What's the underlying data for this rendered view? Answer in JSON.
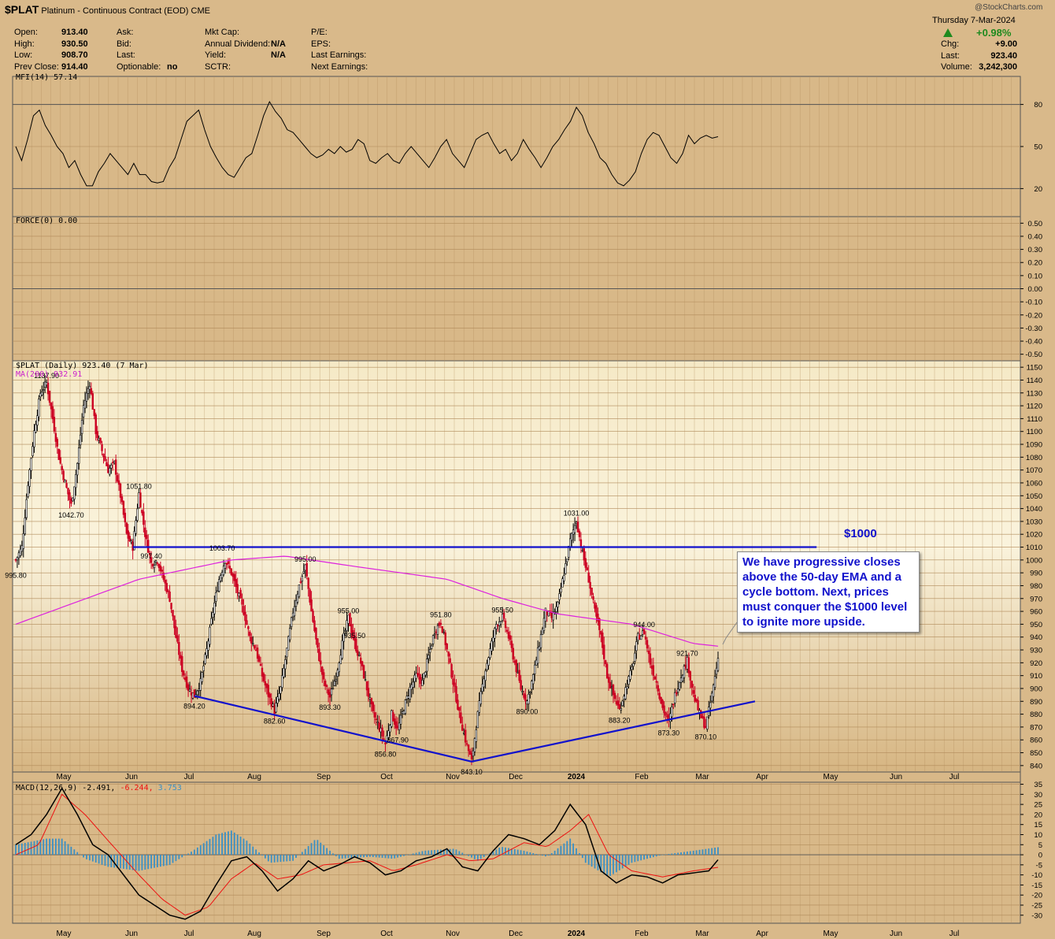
{
  "header": {
    "symbol": "$PLAT",
    "desc": "Platinum - Continuous Contract (EOD)",
    "exchange": "CME",
    "date": "Thursday  7-Mar-2024",
    "copyright": "@StockCharts.com",
    "change_pct": "+0.98%",
    "left_fields": [
      {
        "label": "Open:",
        "value": "913.40"
      },
      {
        "label": "High:",
        "value": "930.50"
      },
      {
        "label": "Low:",
        "value": "908.70"
      },
      {
        "label": "Prev Close:",
        "value": "914.40"
      }
    ],
    "mid_fields": [
      {
        "label": "Ask:",
        "value": ""
      },
      {
        "label": "Bid:",
        "value": ""
      },
      {
        "label": "Last:",
        "value": ""
      },
      {
        "label": "Optionable:",
        "value": "no"
      }
    ],
    "mid2_fields": [
      {
        "label": "Mkt Cap:",
        "value": ""
      },
      {
        "label": "Annual Dividend:",
        "value": "N/A"
      },
      {
        "label": "Yield:",
        "value": "N/A"
      },
      {
        "label": "SCTR:",
        "value": ""
      }
    ],
    "right_fields": [
      {
        "label": "P/E:"
      },
      {
        "label": "EPS:"
      },
      {
        "label": "Last Earnings:"
      },
      {
        "label": "Next Earnings:"
      }
    ],
    "quote_fields": [
      {
        "label": "Chg:",
        "value": "+9.00"
      },
      {
        "label": "Last:",
        "value": "923.40"
      },
      {
        "label": "Volume:",
        "value": "3,242,300"
      }
    ]
  },
  "panels": {
    "mfi_label": "MFI(14) 57.14",
    "force_label": "FORCE(0) 0.00",
    "price_label": "$PLAT (Daily) 923.40 (7 Mar)",
    "ma_label": "MA(200) 932.91",
    "macd_label": "MACD(12,26,9) -2.491,",
    "macd_val2": "-6.244,",
    "macd_val3": "3.753"
  },
  "annotation": {
    "level_label": "$1000",
    "callout": "We have progressive closes above the 50-day EMA and a cycle bottom. Next, prices must conquer the $1000 level to ignite more upside."
  },
  "colors": {
    "up": "#000000",
    "down": "#cc0022",
    "ma": "#dd22dd",
    "trend": "#1111cc",
    "macd_hist": "#3a8fc4",
    "signal": "#ee1111"
  },
  "chart_data": [
    {
      "type": "line",
      "title": "MFI(14) 57.14",
      "yticks": [
        20,
        50,
        80
      ],
      "series": [
        {
          "name": "MFI(14)",
          "values": [
            50,
            40,
            55,
            72,
            76,
            65,
            58,
            50,
            45,
            35,
            40,
            30,
            22,
            22,
            32,
            38,
            45,
            40,
            35,
            30,
            38,
            30,
            30,
            25,
            24,
            25,
            35,
            42,
            55,
            68,
            72,
            76,
            62,
            50,
            42,
            35,
            30,
            28,
            35,
            42,
            45,
            58,
            72,
            82,
            75,
            70,
            62,
            60,
            55,
            50,
            45,
            42,
            44,
            48,
            45,
            50,
            46,
            48,
            55,
            52,
            40,
            38,
            42,
            45,
            40,
            38,
            45,
            50,
            45,
            40,
            35,
            42,
            50,
            55,
            45,
            40,
            35,
            45,
            55,
            58,
            60,
            52,
            45,
            48,
            40,
            45,
            55,
            48,
            42,
            35,
            42,
            50,
            55,
            62,
            68,
            78,
            72,
            60,
            52,
            42,
            38,
            30,
            24,
            22,
            26,
            32,
            45,
            55,
            60,
            58,
            50,
            42,
            38,
            45,
            58,
            52,
            56,
            58,
            56,
            57
          ]
        }
      ],
      "ylim": [
        0,
        100
      ]
    },
    {
      "type": "line",
      "title": "FORCE(0) 0.00",
      "yticks": [
        0.5,
        0.4,
        0.3,
        0.2,
        0.1,
        0.0,
        -0.1,
        -0.2,
        -0.3,
        -0.4,
        -0.5
      ],
      "ylim": [
        -0.55,
        0.55
      ]
    },
    {
      "type": "candlestick",
      "title": "$PLAT (Daily) 923.40 (7 Mar)",
      "x_labels": [
        "May",
        "Jun",
        "Jul",
        "Aug",
        "Sep",
        "Oct",
        "Nov",
        "Dec",
        "2024",
        "Feb",
        "Mar",
        "Apr",
        "May",
        "Jun",
        "Jul"
      ],
      "yticks": [
        840,
        850,
        860,
        870,
        880,
        890,
        900,
        910,
        920,
        930,
        940,
        950,
        960,
        970,
        980,
        990,
        1000,
        1010,
        1020,
        1030,
        1040,
        1050,
        1060,
        1070,
        1080,
        1090,
        1100,
        1110,
        1120,
        1130,
        1140,
        1150
      ],
      "ylim": [
        835,
        1155
      ],
      "close_path": [
        [
          0,
          1000
        ],
        [
          4,
          1010
        ],
        [
          8,
          1060
        ],
        [
          12,
          1100
        ],
        [
          16,
          1130
        ],
        [
          20,
          1137.9
        ],
        [
          24,
          1110
        ],
        [
          28,
          1080
        ],
        [
          32,
          1060
        ],
        [
          36,
          1042.7
        ],
        [
          40,
          1075
        ],
        [
          44,
          1120
        ],
        [
          48,
          1137.9
        ],
        [
          52,
          1100
        ],
        [
          56,
          1085
        ],
        [
          60,
          1070
        ],
        [
          64,
          1075
        ],
        [
          68,
          1050
        ],
        [
          72,
          1020
        ],
        [
          76,
          1010
        ],
        [
          80,
          1051.8
        ],
        [
          84,
          1020
        ],
        [
          88,
          997.4
        ],
        [
          92,
          1000
        ],
        [
          96,
          985
        ],
        [
          100,
          970
        ],
        [
          104,
          940
        ],
        [
          108,
          915
        ],
        [
          112,
          900
        ],
        [
          116,
          894.2
        ],
        [
          120,
          905
        ],
        [
          124,
          930
        ],
        [
          128,
          960
        ],
        [
          132,
          985
        ],
        [
          136,
          1000
        ],
        [
          140,
          990
        ],
        [
          144,
          975
        ],
        [
          148,
          960
        ],
        [
          152,
          940
        ],
        [
          156,
          930
        ],
        [
          160,
          910
        ],
        [
          164,
          895
        ],
        [
          168,
          882.6
        ],
        [
          172,
          900
        ],
        [
          176,
          930
        ],
        [
          180,
          960
        ],
        [
          184,
          980
        ],
        [
          188,
          995
        ],
        [
          192,
          960
        ],
        [
          196,
          930
        ],
        [
          200,
          905
        ],
        [
          204,
          893.3
        ],
        [
          208,
          910
        ],
        [
          212,
          935
        ],
        [
          216,
          955
        ],
        [
          220,
          935.5
        ],
        [
          224,
          920
        ],
        [
          228,
          900
        ],
        [
          232,
          880
        ],
        [
          236,
          870
        ],
        [
          240,
          856.8
        ],
        [
          244,
          880
        ],
        [
          248,
          867.9
        ],
        [
          252,
          885
        ],
        [
          256,
          900
        ],
        [
          260,
          910
        ],
        [
          264,
          905
        ],
        [
          268,
          925
        ],
        [
          272,
          945
        ],
        [
          276,
          951.8
        ],
        [
          280,
          930
        ],
        [
          284,
          905
        ],
        [
          288,
          880
        ],
        [
          292,
          860
        ],
        [
          296,
          843.1
        ],
        [
          300,
          880
        ],
        [
          304,
          910
        ],
        [
          308,
          930
        ],
        [
          312,
          950
        ],
        [
          316,
          955.5
        ],
        [
          320,
          940
        ],
        [
          324,
          920
        ],
        [
          328,
          900
        ],
        [
          332,
          890
        ],
        [
          336,
          910
        ],
        [
          340,
          935
        ],
        [
          344,
          960
        ],
        [
          348,
          955
        ],
        [
          352,
          965
        ],
        [
          356,
          990
        ],
        [
          360,
          1015
        ],
        [
          364,
          1031
        ],
        [
          368,
          1005
        ],
        [
          372,
          985
        ],
        [
          376,
          960
        ],
        [
          380,
          940
        ],
        [
          384,
          910
        ],
        [
          388,
          895
        ],
        [
          392,
          883.2
        ],
        [
          396,
          900
        ],
        [
          400,
          915
        ],
        [
          404,
          940
        ],
        [
          408,
          944
        ],
        [
          412,
          920
        ],
        [
          416,
          905
        ],
        [
          420,
          885
        ],
        [
          424,
          873.3
        ],
        [
          428,
          895
        ],
        [
          432,
          910
        ],
        [
          436,
          921.7
        ],
        [
          440,
          895
        ],
        [
          444,
          880
        ],
        [
          448,
          870.1
        ],
        [
          452,
          895
        ],
        [
          456,
          923.4
        ]
      ],
      "ma200": [
        [
          0,
          950
        ],
        [
          80,
          985
        ],
        [
          140,
          1000
        ],
        [
          175,
          1003
        ],
        [
          220,
          995
        ],
        [
          280,
          985
        ],
        [
          316,
          970
        ],
        [
          352,
          958
        ],
        [
          400,
          950
        ],
        [
          440,
          935
        ],
        [
          456,
          932.91
        ]
      ],
      "annotations": [
        {
          "i": 0,
          "value": "995.80"
        },
        {
          "i": 20,
          "value": "1137.90"
        },
        {
          "i": 36,
          "value": "1042.70"
        },
        {
          "i": 80,
          "value": "1051.80"
        },
        {
          "i": 88,
          "value": "997.40"
        },
        {
          "i": 116,
          "value": "894.20"
        },
        {
          "i": 134,
          "value": "1003.70"
        },
        {
          "i": 168,
          "value": "882.60"
        },
        {
          "i": 188,
          "value": "995.00"
        },
        {
          "i": 204,
          "value": "893.30"
        },
        {
          "i": 216,
          "value": "955.00"
        },
        {
          "i": 220,
          "value": "935.50"
        },
        {
          "i": 240,
          "value": "856.80"
        },
        {
          "i": 248,
          "value": "867.90"
        },
        {
          "i": 276,
          "value": "951.80"
        },
        {
          "i": 296,
          "value": "843.10"
        },
        {
          "i": 316,
          "value": "955.50"
        },
        {
          "i": 332,
          "value": "890.00"
        },
        {
          "i": 364,
          "value": "1031.00"
        },
        {
          "i": 392,
          "value": "883.20"
        },
        {
          "i": 408,
          "value": "944.00"
        },
        {
          "i": 424,
          "value": "873.30"
        },
        {
          "i": 436,
          "value": "921.70"
        },
        {
          "i": 448,
          "value": "870.10"
        }
      ],
      "trendlines": [
        {
          "name": "resistance",
          "from": [
            76,
            1010
          ],
          "to": [
            520,
            1010
          ]
        },
        {
          "name": "support-left",
          "from": [
            116,
            894.2
          ],
          "to": [
            296,
            843.1
          ]
        },
        {
          "name": "support-right",
          "from": [
            296,
            843.1
          ],
          "to": [
            480,
            890
          ]
        }
      ]
    },
    {
      "type": "line",
      "title": "MACD(12,26,9) -2.491, -6.244, 3.753",
      "yticks": [
        35,
        30,
        25,
        20,
        15,
        10,
        5,
        0,
        -5,
        -10,
        -15,
        -20,
        -25,
        -30
      ],
      "ylim": [
        -34,
        36
      ],
      "macd": [
        [
          0,
          5
        ],
        [
          10,
          10
        ],
        [
          20,
          20
        ],
        [
          30,
          33
        ],
        [
          40,
          20
        ],
        [
          50,
          5
        ],
        [
          60,
          0
        ],
        [
          70,
          -10
        ],
        [
          80,
          -20
        ],
        [
          90,
          -25
        ],
        [
          100,
          -30
        ],
        [
          110,
          -32
        ],
        [
          120,
          -28
        ],
        [
          130,
          -15
        ],
        [
          140,
          -3
        ],
        [
          150,
          -1
        ],
        [
          160,
          -8
        ],
        [
          170,
          -18
        ],
        [
          180,
          -12
        ],
        [
          190,
          -3
        ],
        [
          200,
          -8
        ],
        [
          210,
          -5
        ],
        [
          220,
          -1
        ],
        [
          230,
          -4
        ],
        [
          240,
          -10
        ],
        [
          250,
          -8
        ],
        [
          260,
          -3
        ],
        [
          270,
          -1
        ],
        [
          280,
          3
        ],
        [
          290,
          -6
        ],
        [
          300,
          -8
        ],
        [
          310,
          2
        ],
        [
          320,
          10
        ],
        [
          330,
          8
        ],
        [
          340,
          5
        ],
        [
          350,
          12
        ],
        [
          360,
          25
        ],
        [
          370,
          15
        ],
        [
          380,
          -8
        ],
        [
          390,
          -14
        ],
        [
          400,
          -10
        ],
        [
          410,
          -11
        ],
        [
          420,
          -14
        ],
        [
          430,
          -10
        ],
        [
          440,
          -9
        ],
        [
          450,
          -8
        ],
        [
          456,
          -2.491
        ]
      ],
      "signal": [
        [
          0,
          0
        ],
        [
          15,
          5
        ],
        [
          30,
          30
        ],
        [
          45,
          20
        ],
        [
          60,
          7
        ],
        [
          80,
          -10
        ],
        [
          95,
          -22
        ],
        [
          110,
          -30
        ],
        [
          125,
          -26
        ],
        [
          140,
          -12
        ],
        [
          155,
          -4
        ],
        [
          170,
          -12
        ],
        [
          185,
          -10
        ],
        [
          200,
          -5
        ],
        [
          215,
          -4
        ],
        [
          230,
          -3
        ],
        [
          245,
          -8
        ],
        [
          260,
          -5
        ],
        [
          280,
          0
        ],
        [
          295,
          -3
        ],
        [
          310,
          -2
        ],
        [
          330,
          6
        ],
        [
          345,
          4
        ],
        [
          360,
          12
        ],
        [
          372,
          20
        ],
        [
          385,
          0
        ],
        [
          400,
          -8
        ],
        [
          420,
          -11
        ],
        [
          440,
          -8
        ],
        [
          456,
          -6.244
        ]
      ],
      "hist": [
        [
          0,
          5
        ],
        [
          20,
          8
        ],
        [
          30,
          8
        ],
        [
          45,
          -2
        ],
        [
          60,
          -6
        ],
        [
          80,
          -8
        ],
        [
          100,
          -5
        ],
        [
          115,
          2
        ],
        [
          130,
          10
        ],
        [
          140,
          12
        ],
        [
          150,
          7
        ],
        [
          165,
          -4
        ],
        [
          180,
          -3
        ],
        [
          195,
          8
        ],
        [
          210,
          -2
        ],
        [
          230,
          -1
        ],
        [
          245,
          -2
        ],
        [
          265,
          2
        ],
        [
          285,
          3
        ],
        [
          300,
          -3
        ],
        [
          315,
          4
        ],
        [
          330,
          2
        ],
        [
          345,
          -1
        ],
        [
          360,
          8
        ],
        [
          370,
          -4
        ],
        [
          385,
          -11
        ],
        [
          400,
          -4
        ],
        [
          420,
          0
        ],
        [
          440,
          2
        ],
        [
          456,
          3.753
        ]
      ]
    }
  ]
}
